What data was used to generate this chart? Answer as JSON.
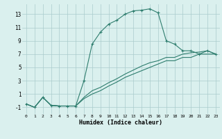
{
  "xlabel": "Humidex (Indice chaleur)",
  "background_color": "#daf0ee",
  "grid_color": "#aacccc",
  "line_color": "#2e7d6e",
  "xlim": [
    -0.5,
    23.5
  ],
  "ylim": [
    -2.0,
    14.5
  ],
  "xticks": [
    0,
    1,
    2,
    3,
    4,
    5,
    6,
    7,
    8,
    9,
    10,
    11,
    12,
    13,
    14,
    15,
    16,
    17,
    18,
    19,
    20,
    21,
    22,
    23
  ],
  "yticks": [
    -1,
    1,
    3,
    5,
    7,
    9,
    11,
    13
  ],
  "line1_x": [
    0,
    1,
    2,
    3,
    4,
    5,
    6,
    7,
    8,
    9,
    10,
    11,
    12,
    13,
    14,
    15,
    16,
    17,
    18,
    19,
    20,
    21,
    22,
    23
  ],
  "line1_y": [
    -0.5,
    -1.0,
    0.5,
    -0.7,
    -0.8,
    -0.8,
    -0.8,
    3.0,
    8.5,
    10.3,
    11.5,
    12.1,
    13.0,
    13.5,
    13.6,
    13.8,
    13.2,
    9.0,
    8.5,
    7.5,
    7.5,
    7.0,
    7.5,
    7.0
  ],
  "line2_x": [
    0,
    1,
    2,
    3,
    4,
    5,
    6,
    7,
    8,
    9,
    10,
    11,
    12,
    13,
    14,
    15,
    16,
    17,
    18,
    19,
    20,
    21,
    22,
    23
  ],
  "line2_y": [
    -0.5,
    -1.0,
    0.5,
    -0.7,
    -0.8,
    -0.8,
    -0.8,
    0.3,
    1.0,
    1.5,
    2.2,
    2.8,
    3.5,
    4.0,
    4.5,
    5.0,
    5.5,
    6.0,
    6.0,
    6.5,
    6.5,
    7.0,
    7.0,
    7.0
  ],
  "line3_x": [
    0,
    1,
    2,
    3,
    4,
    5,
    6,
    7,
    8,
    9,
    10,
    11,
    12,
    13,
    14,
    15,
    16,
    17,
    18,
    19,
    20,
    21,
    22,
    23
  ],
  "line3_y": [
    -0.5,
    -1.0,
    0.5,
    -0.7,
    -0.8,
    -0.8,
    -0.8,
    0.5,
    1.5,
    2.0,
    2.7,
    3.3,
    4.0,
    4.6,
    5.2,
    5.7,
    6.0,
    6.5,
    6.5,
    7.0,
    7.2,
    7.3,
    7.5,
    7.0
  ]
}
